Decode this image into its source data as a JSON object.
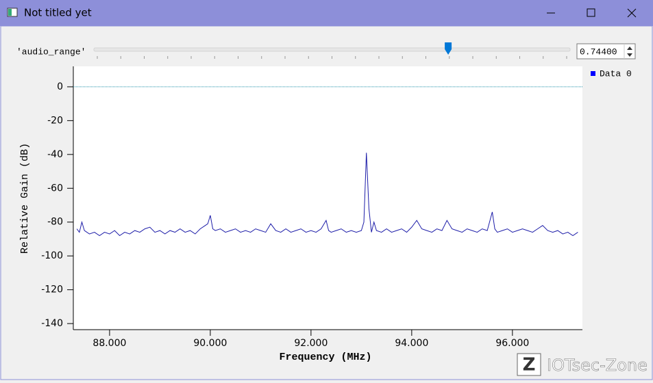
{
  "window": {
    "title": "Not titled yet"
  },
  "controls": {
    "slider": {
      "label": "'audio_range'",
      "value": {
        "value": 0.744,
        "label": "0.74400"
      },
      "range": [
        0,
        1
      ]
    }
  },
  "chart_data": {
    "type": "line",
    "x_label": "Frequency (MHz)",
    "y_label": "Relative Gain (dB)",
    "x": [
      87.35,
      87.4,
      87.45,
      87.5,
      87.6,
      87.7,
      87.8,
      87.9,
      88.0,
      88.1,
      88.2,
      88.3,
      88.4,
      88.5,
      88.6,
      88.7,
      88.8,
      88.9,
      89.0,
      89.1,
      89.2,
      89.3,
      89.4,
      89.5,
      89.6,
      89.7,
      89.8,
      89.9,
      89.95,
      90.0,
      90.05,
      90.1,
      90.2,
      90.3,
      90.4,
      90.5,
      90.6,
      90.7,
      90.8,
      90.9,
      91.0,
      91.1,
      91.2,
      91.3,
      91.4,
      91.5,
      91.6,
      91.7,
      91.8,
      91.9,
      92.0,
      92.1,
      92.2,
      92.3,
      92.35,
      92.4,
      92.5,
      92.6,
      92.7,
      92.8,
      92.9,
      93.0,
      93.05,
      93.1,
      93.15,
      93.2,
      93.25,
      93.3,
      93.4,
      93.5,
      93.6,
      93.7,
      93.8,
      93.9,
      94.0,
      94.1,
      94.2,
      94.3,
      94.4,
      94.5,
      94.6,
      94.7,
      94.8,
      94.9,
      95.0,
      95.1,
      95.2,
      95.3,
      95.4,
      95.5,
      95.6,
      95.65,
      95.7,
      95.8,
      95.9,
      96.0,
      96.1,
      96.2,
      96.3,
      96.4,
      96.5,
      96.6,
      96.7,
      96.8,
      96.9,
      97.0,
      97.1,
      97.2,
      97.3
    ],
    "series": [
      {
        "name": "Data 0",
        "color": "#1c1ca8",
        "values": [
          -84,
          -86,
          -80,
          -85,
          -87,
          -86,
          -88,
          -86,
          -87,
          -85,
          -88,
          -86,
          -87,
          -85,
          -86,
          -84,
          -83,
          -86,
          -85,
          -87,
          -85,
          -86,
          -84,
          -86,
          -85,
          -87,
          -84,
          -82,
          -81,
          -76,
          -84,
          -85,
          -84,
          -86,
          -85,
          -84,
          -86,
          -85,
          -86,
          -84,
          -85,
          -86,
          -81,
          -85,
          -86,
          -84,
          -86,
          -85,
          -84,
          -86,
          -85,
          -86,
          -84,
          -79,
          -85,
          -86,
          -85,
          -84,
          -86,
          -85,
          -86,
          -85,
          -80,
          -39,
          -72,
          -86,
          -80,
          -85,
          -86,
          -84,
          -86,
          -85,
          -84,
          -86,
          -83,
          -79,
          -84,
          -85,
          -86,
          -84,
          -85,
          -79,
          -84,
          -85,
          -86,
          -84,
          -85,
          -86,
          -84,
          -85,
          -74,
          -84,
          -86,
          -85,
          -84,
          -86,
          -85,
          -84,
          -85,
          -86,
          -84,
          -82,
          -85,
          -86,
          -85,
          -87,
          -86,
          -88,
          -86
        ]
      }
    ],
    "legend_color": "#0000ff",
    "xlim": [
      87.28,
      97.39
    ],
    "ylim": [
      -143.6,
      12.1
    ],
    "xticks": [
      {
        "value": 88,
        "label": "88.000"
      },
      {
        "value": 90,
        "label": "90.000"
      },
      {
        "value": 92,
        "label": "92.000"
      },
      {
        "value": 94,
        "label": "94.000"
      },
      {
        "value": 96,
        "label": "96.000"
      }
    ],
    "yticks": [
      0,
      -20,
      -40,
      -60,
      -80,
      -100,
      -120,
      -140
    ],
    "reference_line": 0,
    "reference_color": "#1b8fa6"
  },
  "watermark": {
    "logo": "Z",
    "text": "IOTsec-Zone"
  }
}
